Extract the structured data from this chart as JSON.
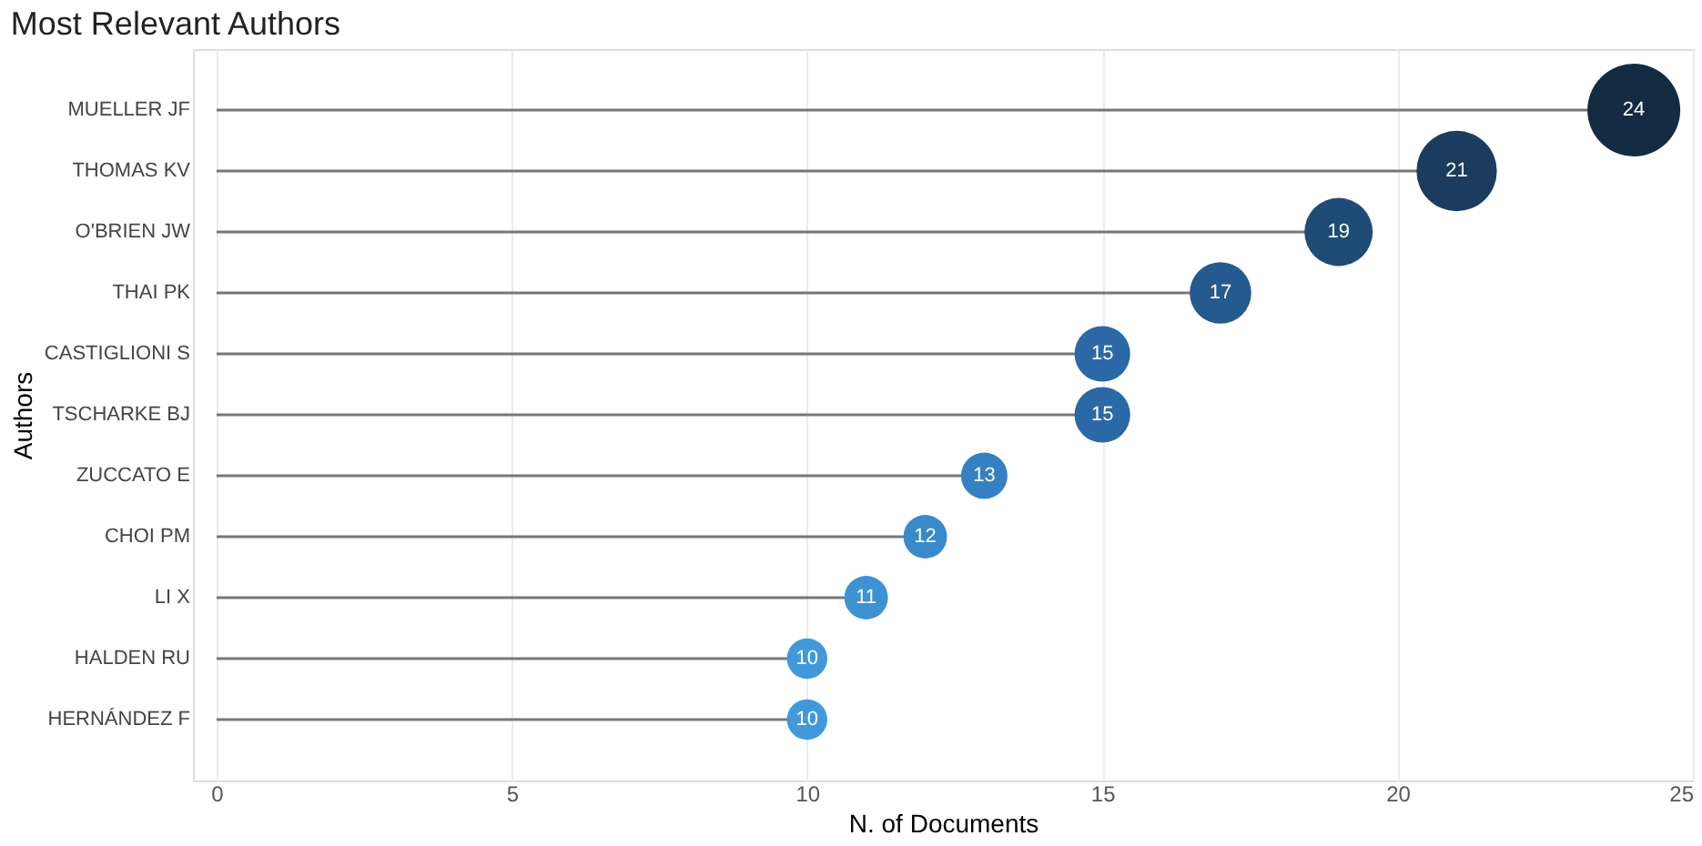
{
  "chart_data": {
    "type": "lollipop",
    "orientation": "horizontal",
    "title": "Most Relevant Authors",
    "xlabel": "N. of Documents",
    "ylabel": "Authors",
    "categories": [
      "MUELLER JF",
      "THOMAS KV",
      "O'BRIEN JW",
      "THAI PK",
      "CASTIGLIONI S",
      "TSCHARKE BJ",
      "ZUCCATO E",
      "CHOI PM",
      "LI X",
      "HALDEN RU",
      "HERNÁNDEZ F"
    ],
    "values": [
      24,
      21,
      19,
      17,
      15,
      15,
      13,
      12,
      11,
      10,
      10
    ],
    "sizes": [
      1,
      0.75,
      0.54,
      0.44,
      0.36,
      0.36,
      0.25,
      0.22,
      0.22,
      0.19,
      0.19
    ],
    "colors": [
      "#132b43",
      "#1a3d5f",
      "#1f4c77",
      "#245a8d",
      "#2a69a6",
      "#2a69a6",
      "#3480c2",
      "#388aca",
      "#3c92d3",
      "#4199dc",
      "#4199dc"
    ],
    "data_labels": true,
    "xlim": [
      -0.4,
      25
    ],
    "xticks": [
      0,
      5,
      10,
      15,
      20,
      25
    ],
    "grid": "x",
    "legend": false
  }
}
